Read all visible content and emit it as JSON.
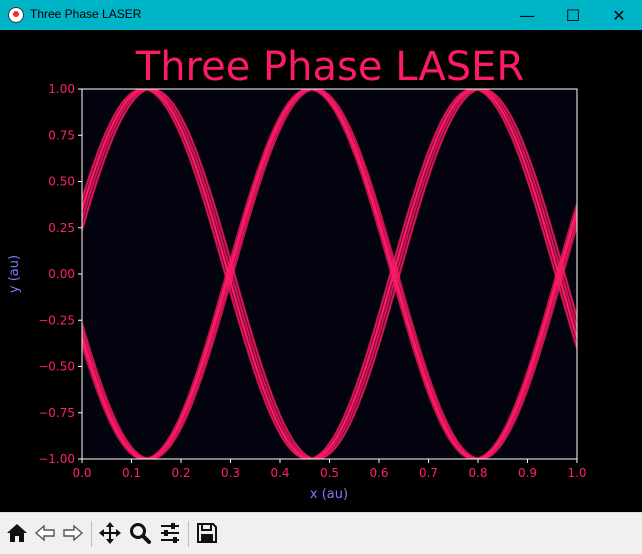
{
  "window": {
    "title": "Three Phase LASER",
    "controls": {
      "minimize": "—",
      "maximize": "☐",
      "close": "✕"
    }
  },
  "colors": {
    "titlebar": "#00b4c8",
    "figure_bg": "#000000",
    "axes_bg": "#03030f",
    "curve": "#ff1a66",
    "tick_label": "#ff2266",
    "axis_label": "#7a7aff",
    "spine": "#ffffff"
  },
  "toolbar": {
    "items": [
      {
        "name": "home-icon"
      },
      {
        "name": "back-arrow-icon"
      },
      {
        "name": "forward-arrow-icon"
      },
      {
        "name": "pan-icon"
      },
      {
        "name": "zoom-icon"
      },
      {
        "name": "configure-subplots-icon"
      },
      {
        "name": "save-icon"
      }
    ]
  },
  "chart_data": {
    "type": "line",
    "title": "Three Phase LASER",
    "xlabel": "x (au)",
    "ylabel": "y (au)",
    "xlim": [
      0.0,
      1.0
    ],
    "ylim": [
      -1.0,
      1.0
    ],
    "x_ticks": [
      "0.0",
      "0.1",
      "0.2",
      "0.3",
      "0.4",
      "0.5",
      "0.6",
      "0.7",
      "0.8",
      "0.9",
      "1.0"
    ],
    "y_ticks": [
      "1.00",
      "0.75",
      "0.50",
      "0.25",
      "0.00",
      "−0.25",
      "−0.50",
      "−0.75",
      "−1.00"
    ],
    "grid": false,
    "legend": "none",
    "period": 0.667,
    "series": [
      {
        "peak_x": 0.13,
        "trace_offsets": [
          -0.006,
          0.0,
          0.006,
          0.012
        ],
        "stroke": 1.4
      },
      {
        "peak_x": 0.463,
        "trace_offsets": [
          -0.004,
          0.0,
          0.004,
          0.008
        ],
        "stroke": 2.6
      },
      {
        "peak_x": 0.797,
        "trace_offsets": [
          -0.008,
          -0.002,
          0.004,
          0.01
        ],
        "stroke": 1.6
      }
    ]
  }
}
